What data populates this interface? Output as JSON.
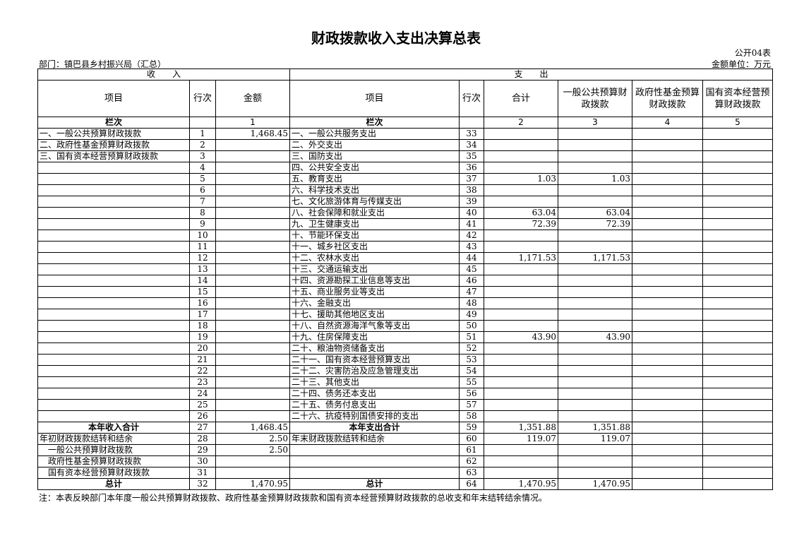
{
  "title": "财政拨款收入支出决算总表",
  "table_code": "公开04表",
  "department": "部门：镇巴县乡村振兴局（汇总）",
  "unit": "金额单位：万元",
  "headers": {
    "income": "收　　入",
    "expense": "支　　出",
    "item": "项目",
    "line": "行次",
    "amount": "金额",
    "total": "合计",
    "general": "一般公共预算财政拨款",
    "fund": "政府性基金预算财政拨款",
    "state": "国有资本经营预算财政拨款",
    "col_label": "栏次",
    "col1": "1",
    "col2": "2",
    "col3": "3",
    "col4": "4",
    "col5": "5"
  },
  "rows": [
    {
      "in_item": "一、一般公共预算财政拨款",
      "in_line": "1",
      "in_amt": "1,468.45",
      "ex_item": "一、一般公共服务支出",
      "ex_line": "33",
      "total": "",
      "general": "",
      "fund": "",
      "state": ""
    },
    {
      "in_item": "二、政府性基金预算财政拨款",
      "in_line": "2",
      "in_amt": "",
      "ex_item": "二、外交支出",
      "ex_line": "34",
      "total": "",
      "general": "",
      "fund": "",
      "state": ""
    },
    {
      "in_item": "三、国有资本经营预算财政拨款",
      "in_line": "3",
      "in_amt": "",
      "ex_item": "三、国防支出",
      "ex_line": "35",
      "total": "",
      "general": "",
      "fund": "",
      "state": ""
    },
    {
      "in_item": "",
      "in_line": "4",
      "in_amt": "",
      "ex_item": "四、公共安全支出",
      "ex_line": "36",
      "total": "",
      "general": "",
      "fund": "",
      "state": ""
    },
    {
      "in_item": "",
      "in_line": "5",
      "in_amt": "",
      "ex_item": "五、教育支出",
      "ex_line": "37",
      "total": "1.03",
      "general": "1.03",
      "fund": "",
      "state": ""
    },
    {
      "in_item": "",
      "in_line": "6",
      "in_amt": "",
      "ex_item": "六、科学技术支出",
      "ex_line": "38",
      "total": "",
      "general": "",
      "fund": "",
      "state": ""
    },
    {
      "in_item": "",
      "in_line": "7",
      "in_amt": "",
      "ex_item": "七、文化旅游体育与传媒支出",
      "ex_line": "39",
      "total": "",
      "general": "",
      "fund": "",
      "state": ""
    },
    {
      "in_item": "",
      "in_line": "8",
      "in_amt": "",
      "ex_item": "八、社会保障和就业支出",
      "ex_line": "40",
      "total": "63.04",
      "general": "63.04",
      "fund": "",
      "state": ""
    },
    {
      "in_item": "",
      "in_line": "9",
      "in_amt": "",
      "ex_item": "九、卫生健康支出",
      "ex_line": "41",
      "total": "72.39",
      "general": "72.39",
      "fund": "",
      "state": ""
    },
    {
      "in_item": "",
      "in_line": "10",
      "in_amt": "",
      "ex_item": "十、节能环保支出",
      "ex_line": "42",
      "total": "",
      "general": "",
      "fund": "",
      "state": ""
    },
    {
      "in_item": "",
      "in_line": "11",
      "in_amt": "",
      "ex_item": "十一、城乡社区支出",
      "ex_line": "43",
      "total": "",
      "general": "",
      "fund": "",
      "state": ""
    },
    {
      "in_item": "",
      "in_line": "12",
      "in_amt": "",
      "ex_item": "十二、农林水支出",
      "ex_line": "44",
      "total": "1,171.53",
      "general": "1,171.53",
      "fund": "",
      "state": ""
    },
    {
      "in_item": "",
      "in_line": "13",
      "in_amt": "",
      "ex_item": "十三、交通运输支出",
      "ex_line": "45",
      "total": "",
      "general": "",
      "fund": "",
      "state": ""
    },
    {
      "in_item": "",
      "in_line": "14",
      "in_amt": "",
      "ex_item": "十四、资源勘探工业信息等支出",
      "ex_line": "46",
      "total": "",
      "general": "",
      "fund": "",
      "state": ""
    },
    {
      "in_item": "",
      "in_line": "15",
      "in_amt": "",
      "ex_item": "十五、商业服务业等支出",
      "ex_line": "47",
      "total": "",
      "general": "",
      "fund": "",
      "state": ""
    },
    {
      "in_item": "",
      "in_line": "16",
      "in_amt": "",
      "ex_item": "十六、金融支出",
      "ex_line": "48",
      "total": "",
      "general": "",
      "fund": "",
      "state": ""
    },
    {
      "in_item": "",
      "in_line": "17",
      "in_amt": "",
      "ex_item": "十七、援助其他地区支出",
      "ex_line": "49",
      "total": "",
      "general": "",
      "fund": "",
      "state": ""
    },
    {
      "in_item": "",
      "in_line": "18",
      "in_amt": "",
      "ex_item": "十八、自然资源海洋气象等支出",
      "ex_line": "50",
      "total": "",
      "general": "",
      "fund": "",
      "state": ""
    },
    {
      "in_item": "",
      "in_line": "19",
      "in_amt": "",
      "ex_item": "十九、住房保障支出",
      "ex_line": "51",
      "total": "43.90",
      "general": "43.90",
      "fund": "",
      "state": ""
    },
    {
      "in_item": "",
      "in_line": "20",
      "in_amt": "",
      "ex_item": "二十、粮油物资储备支出",
      "ex_line": "52",
      "total": "",
      "general": "",
      "fund": "",
      "state": ""
    },
    {
      "in_item": "",
      "in_line": "21",
      "in_amt": "",
      "ex_item": "二十一、国有资本经营预算支出",
      "ex_line": "53",
      "total": "",
      "general": "",
      "fund": "",
      "state": ""
    },
    {
      "in_item": "",
      "in_line": "22",
      "in_amt": "",
      "ex_item": "二十二、灾害防治及应急管理支出",
      "ex_line": "54",
      "total": "",
      "general": "",
      "fund": "",
      "state": ""
    },
    {
      "in_item": "",
      "in_line": "23",
      "in_amt": "",
      "ex_item": "二十三、其他支出",
      "ex_line": "55",
      "total": "",
      "general": "",
      "fund": "",
      "state": ""
    },
    {
      "in_item": "",
      "in_line": "24",
      "in_amt": "",
      "ex_item": "二十四、债务还本支出",
      "ex_line": "56",
      "total": "",
      "general": "",
      "fund": "",
      "state": ""
    },
    {
      "in_item": "",
      "in_line": "25",
      "in_amt": "",
      "ex_item": "二十五、债务付息支出",
      "ex_line": "57",
      "total": "",
      "general": "",
      "fund": "",
      "state": ""
    },
    {
      "in_item": "",
      "in_line": "26",
      "in_amt": "",
      "ex_item": "二十六、抗疫特别国债安排的支出",
      "ex_line": "58",
      "total": "",
      "general": "",
      "fund": "",
      "state": ""
    },
    {
      "in_item": "本年收入合计",
      "in_line": "27",
      "in_amt": "1,468.45",
      "ex_item": "本年支出合计",
      "ex_line": "59",
      "total": "1,351.88",
      "general": "1,351.88",
      "fund": "",
      "state": "",
      "bold": true
    },
    {
      "in_item": "年初财政拨款结转和结余",
      "in_line": "28",
      "in_amt": "2.50",
      "ex_item": "年末财政拨款结转和结余",
      "ex_line": "60",
      "total": "119.07",
      "general": "119.07",
      "fund": "",
      "state": ""
    },
    {
      "in_item": "一般公共预算财政拨款",
      "in_line": "29",
      "in_amt": "2.50",
      "ex_item": "",
      "ex_line": "61",
      "total": "",
      "general": "",
      "fund": "",
      "state": "",
      "indent": true
    },
    {
      "in_item": "政府性基金预算财政拨款",
      "in_line": "30",
      "in_amt": "",
      "ex_item": "",
      "ex_line": "62",
      "total": "",
      "general": "",
      "fund": "",
      "state": "",
      "indent": true
    },
    {
      "in_item": "国有资本经营预算财政拨款",
      "in_line": "31",
      "in_amt": "",
      "ex_item": "",
      "ex_line": "63",
      "total": "",
      "general": "",
      "fund": "",
      "state": "",
      "indent": true
    },
    {
      "in_item": "总计",
      "in_line": "32",
      "in_amt": "1,470.95",
      "ex_item": "总计",
      "ex_line": "64",
      "total": "1,470.95",
      "general": "1,470.95",
      "fund": "",
      "state": "",
      "bold": true
    }
  ],
  "note": "注：本表反映部门本年度一般公共预算财政拨款、政府性基金预算财政拨款和国有资本经营预算财政拨款的总收支和年末结转结余情况。"
}
